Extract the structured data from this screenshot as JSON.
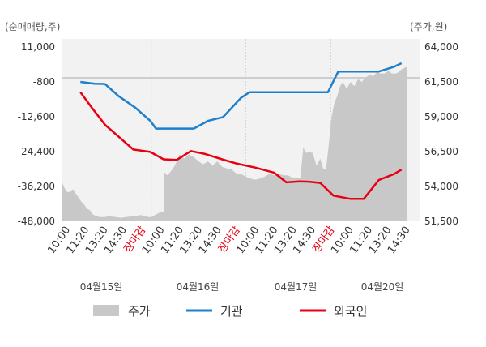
{
  "chart_data": {
    "type": "line",
    "left_unit": "(순매매량,주)",
    "right_unit": "(주가,원)",
    "left_ticks": [
      "11,000",
      "-800",
      "-12,600",
      "-24,400",
      "-36,200",
      "-48,000"
    ],
    "right_ticks": [
      "64,000",
      "61,500",
      "59,000",
      "56,500",
      "54,000",
      "51,500"
    ],
    "left_ylim": [
      -48000,
      11000
    ],
    "right_ylim": [
      51500,
      64000
    ],
    "x_labels": [
      "10:00",
      "11:20",
      "13:20",
      "14:30",
      "장마감",
      "10:00",
      "11:20",
      "13:20",
      "14:30",
      "장마감",
      "10:00",
      "11:20",
      "13:20",
      "14:30",
      "장마감",
      "10:00",
      "11:20",
      "13:20",
      "14:30"
    ],
    "close_label": "장마감",
    "dates": [
      "04월15일",
      "04월16일",
      "04월17일",
      "04월20일"
    ],
    "series": [
      {
        "name": "주가",
        "axis": "right",
        "color": "#c8c8c8",
        "points": [
          [
            0,
            54400
          ],
          [
            0.3,
            53900
          ],
          [
            0.6,
            53600
          ],
          [
            0.9,
            53600
          ],
          [
            1.2,
            53800
          ],
          [
            1.5,
            53500
          ],
          [
            1.8,
            53200
          ],
          [
            2.1,
            52900
          ],
          [
            2.4,
            52700
          ],
          [
            2.7,
            52400
          ],
          [
            3,
            52300
          ],
          [
            3.3,
            52000
          ],
          [
            3.6,
            51900
          ],
          [
            4,
            51800
          ],
          [
            4.3,
            51800
          ],
          [
            4.6,
            51800
          ],
          [
            5,
            51900
          ],
          [
            5.2,
            51850
          ],
          [
            5.8,
            51800
          ],
          [
            6.3,
            51750
          ],
          [
            6.8,
            51800
          ],
          [
            7.3,
            51850
          ],
          [
            7.9,
            51900
          ],
          [
            8.4,
            51950
          ],
          [
            9.2,
            51800
          ],
          [
            9.5,
            51800
          ],
          [
            10,
            52000
          ],
          [
            10.3,
            52100
          ],
          [
            10.8,
            52200
          ],
          [
            10.9,
            55000
          ],
          [
            11.2,
            54800
          ],
          [
            11.6,
            55100
          ],
          [
            12,
            55500
          ],
          [
            12.5,
            56300
          ],
          [
            13,
            56000
          ],
          [
            13.5,
            56300
          ],
          [
            14,
            56100
          ],
          [
            14.5,
            55800
          ],
          [
            15,
            55600
          ],
          [
            15.5,
            55800
          ],
          [
            16,
            55500
          ],
          [
            16.5,
            55800
          ],
          [
            17,
            55400
          ],
          [
            17.5,
            55300
          ],
          [
            17.8,
            55200
          ],
          [
            18,
            55300
          ],
          [
            18.2,
            55100
          ],
          [
            18.6,
            54900
          ],
          [
            19,
            54900
          ],
          [
            19.5,
            54700
          ],
          [
            19.9,
            54600
          ],
          [
            20.3,
            54500
          ],
          [
            20.7,
            54500
          ],
          [
            21.1,
            54600
          ],
          [
            21.5,
            54700
          ],
          [
            22,
            54900
          ],
          [
            22.5,
            54800
          ],
          [
            23,
            54900
          ],
          [
            23.5,
            54800
          ],
          [
            24,
            54800
          ],
          [
            24.5,
            54600
          ],
          [
            25,
            54600
          ],
          [
            25.3,
            54600
          ],
          [
            25.6,
            56800
          ],
          [
            25.9,
            56400
          ],
          [
            26.2,
            56500
          ],
          [
            26.6,
            56400
          ],
          [
            27,
            55500
          ],
          [
            27.4,
            56000
          ],
          [
            27.7,
            55300
          ],
          [
            28,
            55200
          ],
          [
            28.3,
            57000
          ],
          [
            28.6,
            59000
          ],
          [
            28.9,
            60000
          ],
          [
            29.2,
            60500
          ],
          [
            29.5,
            61200
          ],
          [
            29.8,
            61500
          ],
          [
            30.2,
            61000
          ],
          [
            30.6,
            61500
          ],
          [
            31,
            61200
          ],
          [
            31.4,
            61700
          ],
          [
            31.8,
            61500
          ],
          [
            32.2,
            61800
          ],
          [
            32.6,
            62000
          ],
          [
            33,
            61900
          ],
          [
            33.4,
            62200
          ],
          [
            33.8,
            62100
          ],
          [
            34.2,
            62100
          ],
          [
            34.6,
            62300
          ],
          [
            35,
            62100
          ],
          [
            35.4,
            62100
          ],
          [
            35.7,
            62200
          ],
          [
            36,
            62400
          ],
          [
            36.3,
            62500
          ],
          [
            36.6,
            62600
          ]
        ]
      },
      {
        "name": "기관",
        "axis": "left",
        "color": "#1e7fcb",
        "points": [
          [
            2,
            -800
          ],
          [
            3.5,
            -1400
          ],
          [
            4.6,
            -1500
          ],
          [
            6,
            -5500
          ],
          [
            7.8,
            -9500
          ],
          [
            9.4,
            -14000
          ],
          [
            10,
            -16600
          ],
          [
            11.3,
            -16600
          ],
          [
            12.5,
            -16600
          ],
          [
            14,
            -16600
          ],
          [
            15.5,
            -14000
          ],
          [
            17.1,
            -12700
          ],
          [
            19,
            -6200
          ],
          [
            19.9,
            -4300
          ],
          [
            22,
            -4300
          ],
          [
            24,
            -4300
          ],
          [
            26,
            -4300
          ],
          [
            27.7,
            -4300
          ],
          [
            28.2,
            -4300
          ],
          [
            29.3,
            2700
          ],
          [
            32,
            2700
          ],
          [
            33.6,
            2700
          ],
          [
            35.2,
            4300
          ],
          [
            36,
            5500
          ]
        ]
      },
      {
        "name": "외국인",
        "axis": "left",
        "color": "#e60012",
        "points": [
          [
            2,
            -4300
          ],
          [
            3.2,
            -9500
          ],
          [
            4.6,
            -15300
          ],
          [
            6,
            -19200
          ],
          [
            7.6,
            -23700
          ],
          [
            9.4,
            -24500
          ],
          [
            10.8,
            -27000
          ],
          [
            12.2,
            -27200
          ],
          [
            13.7,
            -24200
          ],
          [
            15.2,
            -25200
          ],
          [
            17,
            -27000
          ],
          [
            18.6,
            -28500
          ],
          [
            20.5,
            -29800
          ],
          [
            22.5,
            -31500
          ],
          [
            23.8,
            -34800
          ],
          [
            25.2,
            -34500
          ],
          [
            26.3,
            -34600
          ],
          [
            27.4,
            -35000
          ],
          [
            28.8,
            -39300
          ],
          [
            30.6,
            -40400
          ],
          [
            32,
            -40400
          ],
          [
            33.6,
            -34000
          ],
          [
            35.2,
            -32000
          ],
          [
            36,
            -30500
          ]
        ]
      }
    ]
  }
}
